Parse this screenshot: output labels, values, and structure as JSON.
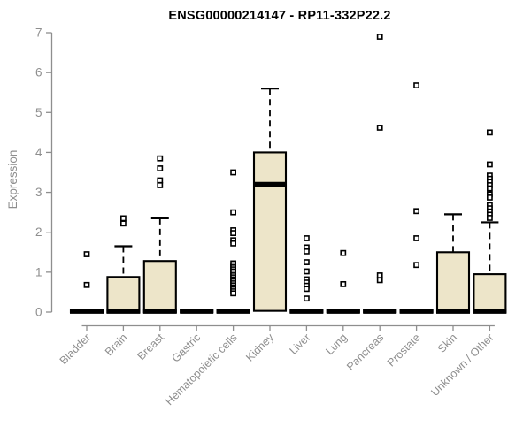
{
  "chart_data": {
    "type": "boxplot",
    "title": "ENSG00000214147 - RP11-332P22.2",
    "ylabel": "Expression",
    "xlabel": "",
    "ylim": [
      0,
      7
    ],
    "yticks": [
      0,
      1,
      2,
      3,
      4,
      5,
      6,
      7
    ],
    "grid": "off",
    "legend": "none",
    "box_fill": "#EDE5C9",
    "box_stroke": "#000000",
    "axis_color": "#8e8e8e",
    "categories": [
      "Bladder",
      "Brain",
      "Breast",
      "Gastric",
      "Hematopoietic cells",
      "Kidney",
      "Liver",
      "Lung",
      "Pancreas",
      "Prostate",
      "Skin",
      "Unknown / Other"
    ],
    "series": [
      {
        "category": "Bladder",
        "q1": 0,
        "median": 0.02,
        "q3": 0.05,
        "whisker_low": 0,
        "whisker_high": 0.05,
        "outliers": [
          1.45,
          0.68
        ]
      },
      {
        "category": "Brain",
        "q1": 0,
        "median": 0.02,
        "q3": 0.88,
        "whisker_low": 0,
        "whisker_high": 1.65,
        "outliers": [
          2.35,
          2.22
        ]
      },
      {
        "category": "Breast",
        "q1": 0,
        "median": 0.02,
        "q3": 1.28,
        "whisker_low": 0,
        "whisker_high": 2.35,
        "outliers": [
          3.85,
          3.6,
          3.3,
          3.18
        ]
      },
      {
        "category": "Gastric",
        "q1": 0,
        "median": 0.02,
        "q3": 0.05,
        "whisker_low": 0,
        "whisker_high": 0.05,
        "outliers": []
      },
      {
        "category": "Hematopoietic cells",
        "q1": 0,
        "median": 0.02,
        "q3": 0.05,
        "whisker_low": 0,
        "whisker_high": 0.05,
        "outliers": [
          3.5,
          2.5,
          2.05,
          1.98,
          1.8,
          1.72,
          1.22,
          1.17,
          1.12,
          1.07,
          1.02,
          0.97,
          0.92,
          0.87,
          0.82,
          0.77,
          0.72,
          0.67,
          0.62,
          0.57,
          0.52,
          0.47
        ]
      },
      {
        "category": "Kidney",
        "q1": 0.03,
        "median": 3.2,
        "q3": 4.0,
        "whisker_low": 0.03,
        "whisker_high": 5.6,
        "outliers": []
      },
      {
        "category": "Liver",
        "q1": 0,
        "median": 0.02,
        "q3": 0.05,
        "whisker_low": 0,
        "whisker_high": 0.05,
        "outliers": [
          1.85,
          1.62,
          1.52,
          1.25,
          1.02,
          0.82,
          0.74,
          0.66,
          0.58,
          0.34
        ]
      },
      {
        "category": "Lung",
        "q1": 0,
        "median": 0.02,
        "q3": 0.05,
        "whisker_low": 0,
        "whisker_high": 0.05,
        "outliers": [
          1.48,
          0.7
        ]
      },
      {
        "category": "Pancreas",
        "q1": 0,
        "median": 0.02,
        "q3": 0.05,
        "whisker_low": 0,
        "whisker_high": 0.05,
        "outliers": [
          6.9,
          4.62,
          0.92,
          0.8
        ]
      },
      {
        "category": "Prostate",
        "q1": 0,
        "median": 0.02,
        "q3": 0.05,
        "whisker_low": 0,
        "whisker_high": 0.05,
        "outliers": [
          5.68,
          2.53,
          1.85,
          1.18
        ]
      },
      {
        "category": "Skin",
        "q1": 0,
        "median": 0.02,
        "q3": 1.5,
        "whisker_low": 0,
        "whisker_high": 2.45,
        "outliers": []
      },
      {
        "category": "Unknown / Other",
        "q1": 0,
        "median": 0.02,
        "q3": 0.95,
        "whisker_low": 0,
        "whisker_high": 2.25,
        "outliers": [
          4.5,
          3.7,
          3.42,
          3.34,
          3.26,
          3.18,
          3.1,
          2.95,
          2.87,
          2.68,
          2.6,
          2.52,
          2.44,
          2.36
        ]
      }
    ]
  }
}
